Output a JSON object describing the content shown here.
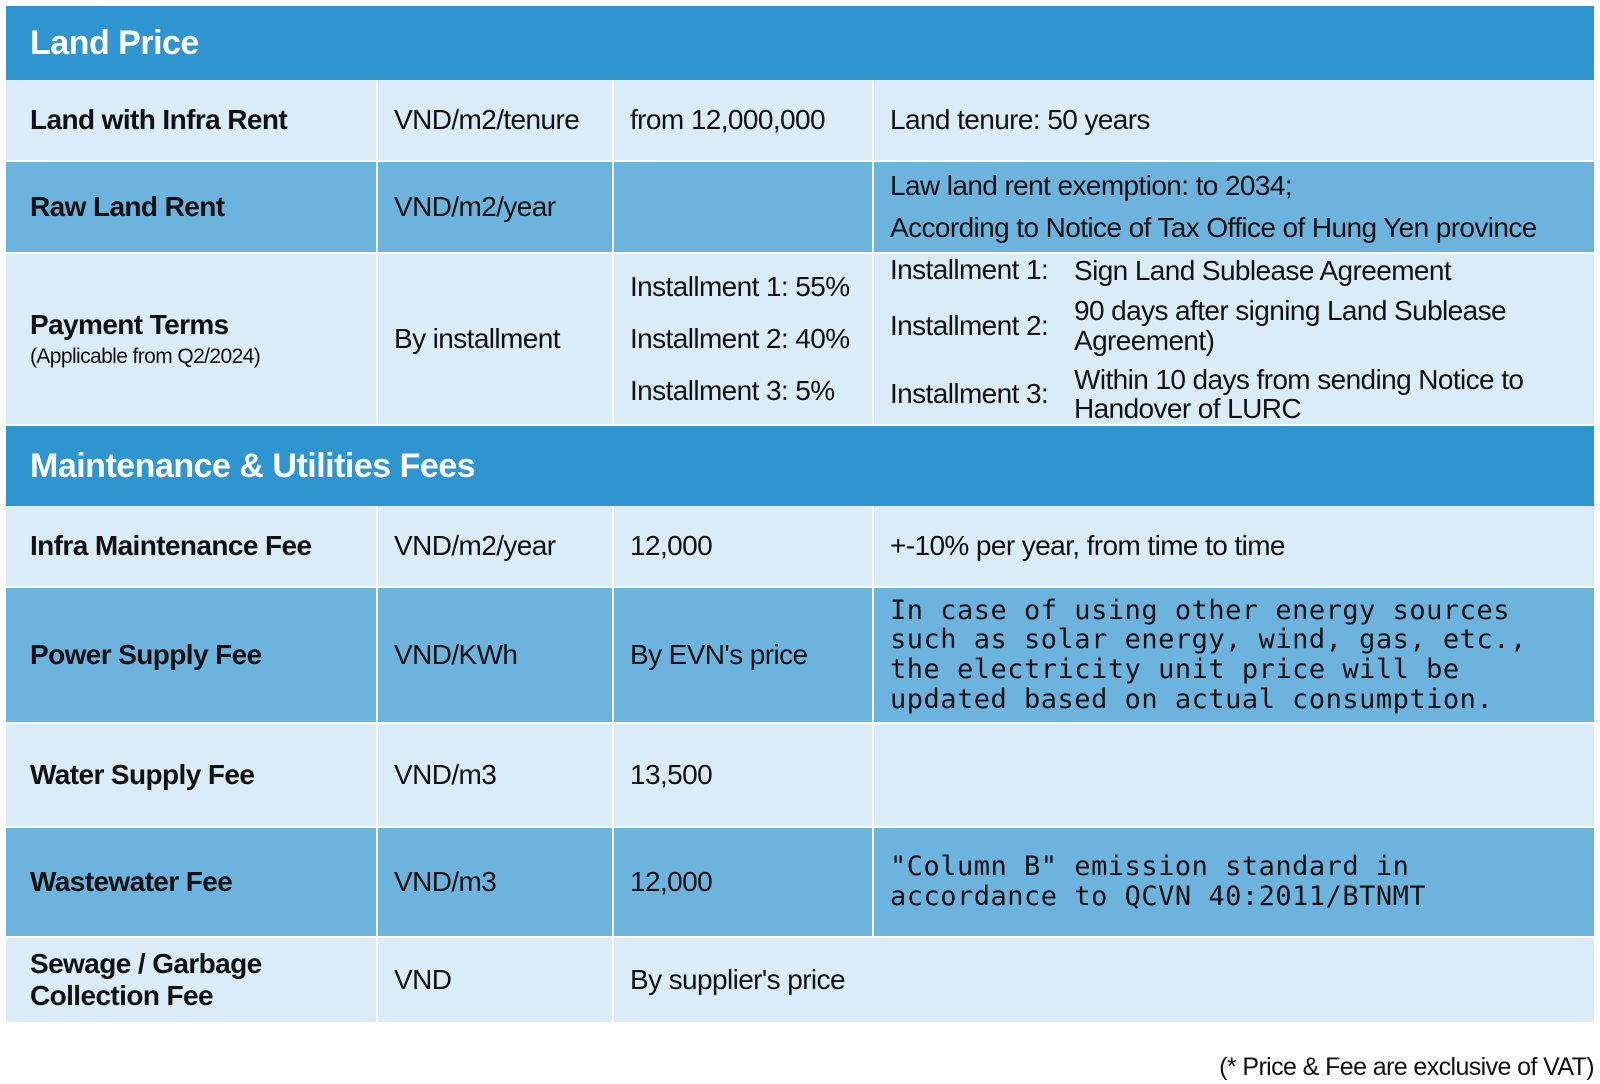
{
  "sections": {
    "land_price": {
      "title": "Land Price",
      "rows": [
        {
          "label": "Land with Infra Rent",
          "unit": "VND/m2/tenure",
          "value": "from 12,000,000",
          "note": "Land tenure: 50 years"
        },
        {
          "label": "Raw Land Rent",
          "unit": "VND/m2/year",
          "value": "",
          "note_lines": [
            "Law land rent exemption: to 2034;",
            "According to Notice of Tax Office of Hung Yen province"
          ]
        },
        {
          "label": "Payment Terms",
          "sublabel": "(Applicable from Q2/2024)",
          "unit": "By installment",
          "installments": [
            "Installment 1: 55%",
            "Installment 2: 40%",
            "Installment 3: 5%"
          ],
          "details": [
            {
              "key": "Installment 1:",
              "text": "Sign Land Sublease Agreement"
            },
            {
              "key": "Installment 2:",
              "text": "90 days after signing Land Sublease Agreement)"
            },
            {
              "key": "Installment 3:",
              "text": "Within 10 days from sending Notice to Handover of LURC"
            }
          ]
        }
      ]
    },
    "fees": {
      "title": "Maintenance & Utilities Fees",
      "rows": [
        {
          "label": "Infra Maintenance Fee",
          "unit": "VND/m2/year",
          "value": "12,000",
          "note": "+-10% per year, from time to time"
        },
        {
          "label": "Power Supply Fee",
          "unit": "VND/KWh",
          "value": "By EVN's price",
          "note": "In case of using other energy sources such as solar energy, wind, gas, etc., the electricity unit price will be updated based on actual consumption."
        },
        {
          "label": "Water Supply Fee",
          "unit": "VND/m3",
          "value": "13,500",
          "note": ""
        },
        {
          "label": "Wastewater Fee",
          "unit": "VND/m3",
          "value": "12,000",
          "note": "\"Column B\" emission standard in accordance to QCVN 40:2011/BTNMT"
        },
        {
          "label": "Sewage / Garbage Collection Fee",
          "unit": "VND",
          "value": "By supplier's price"
        }
      ]
    }
  },
  "footnote": "(* Price & Fee are exclusive of  VAT)",
  "colors": {
    "header": "#2e95d1",
    "row_light": "#d9ecf7",
    "row_mid": "#6cb3de"
  }
}
